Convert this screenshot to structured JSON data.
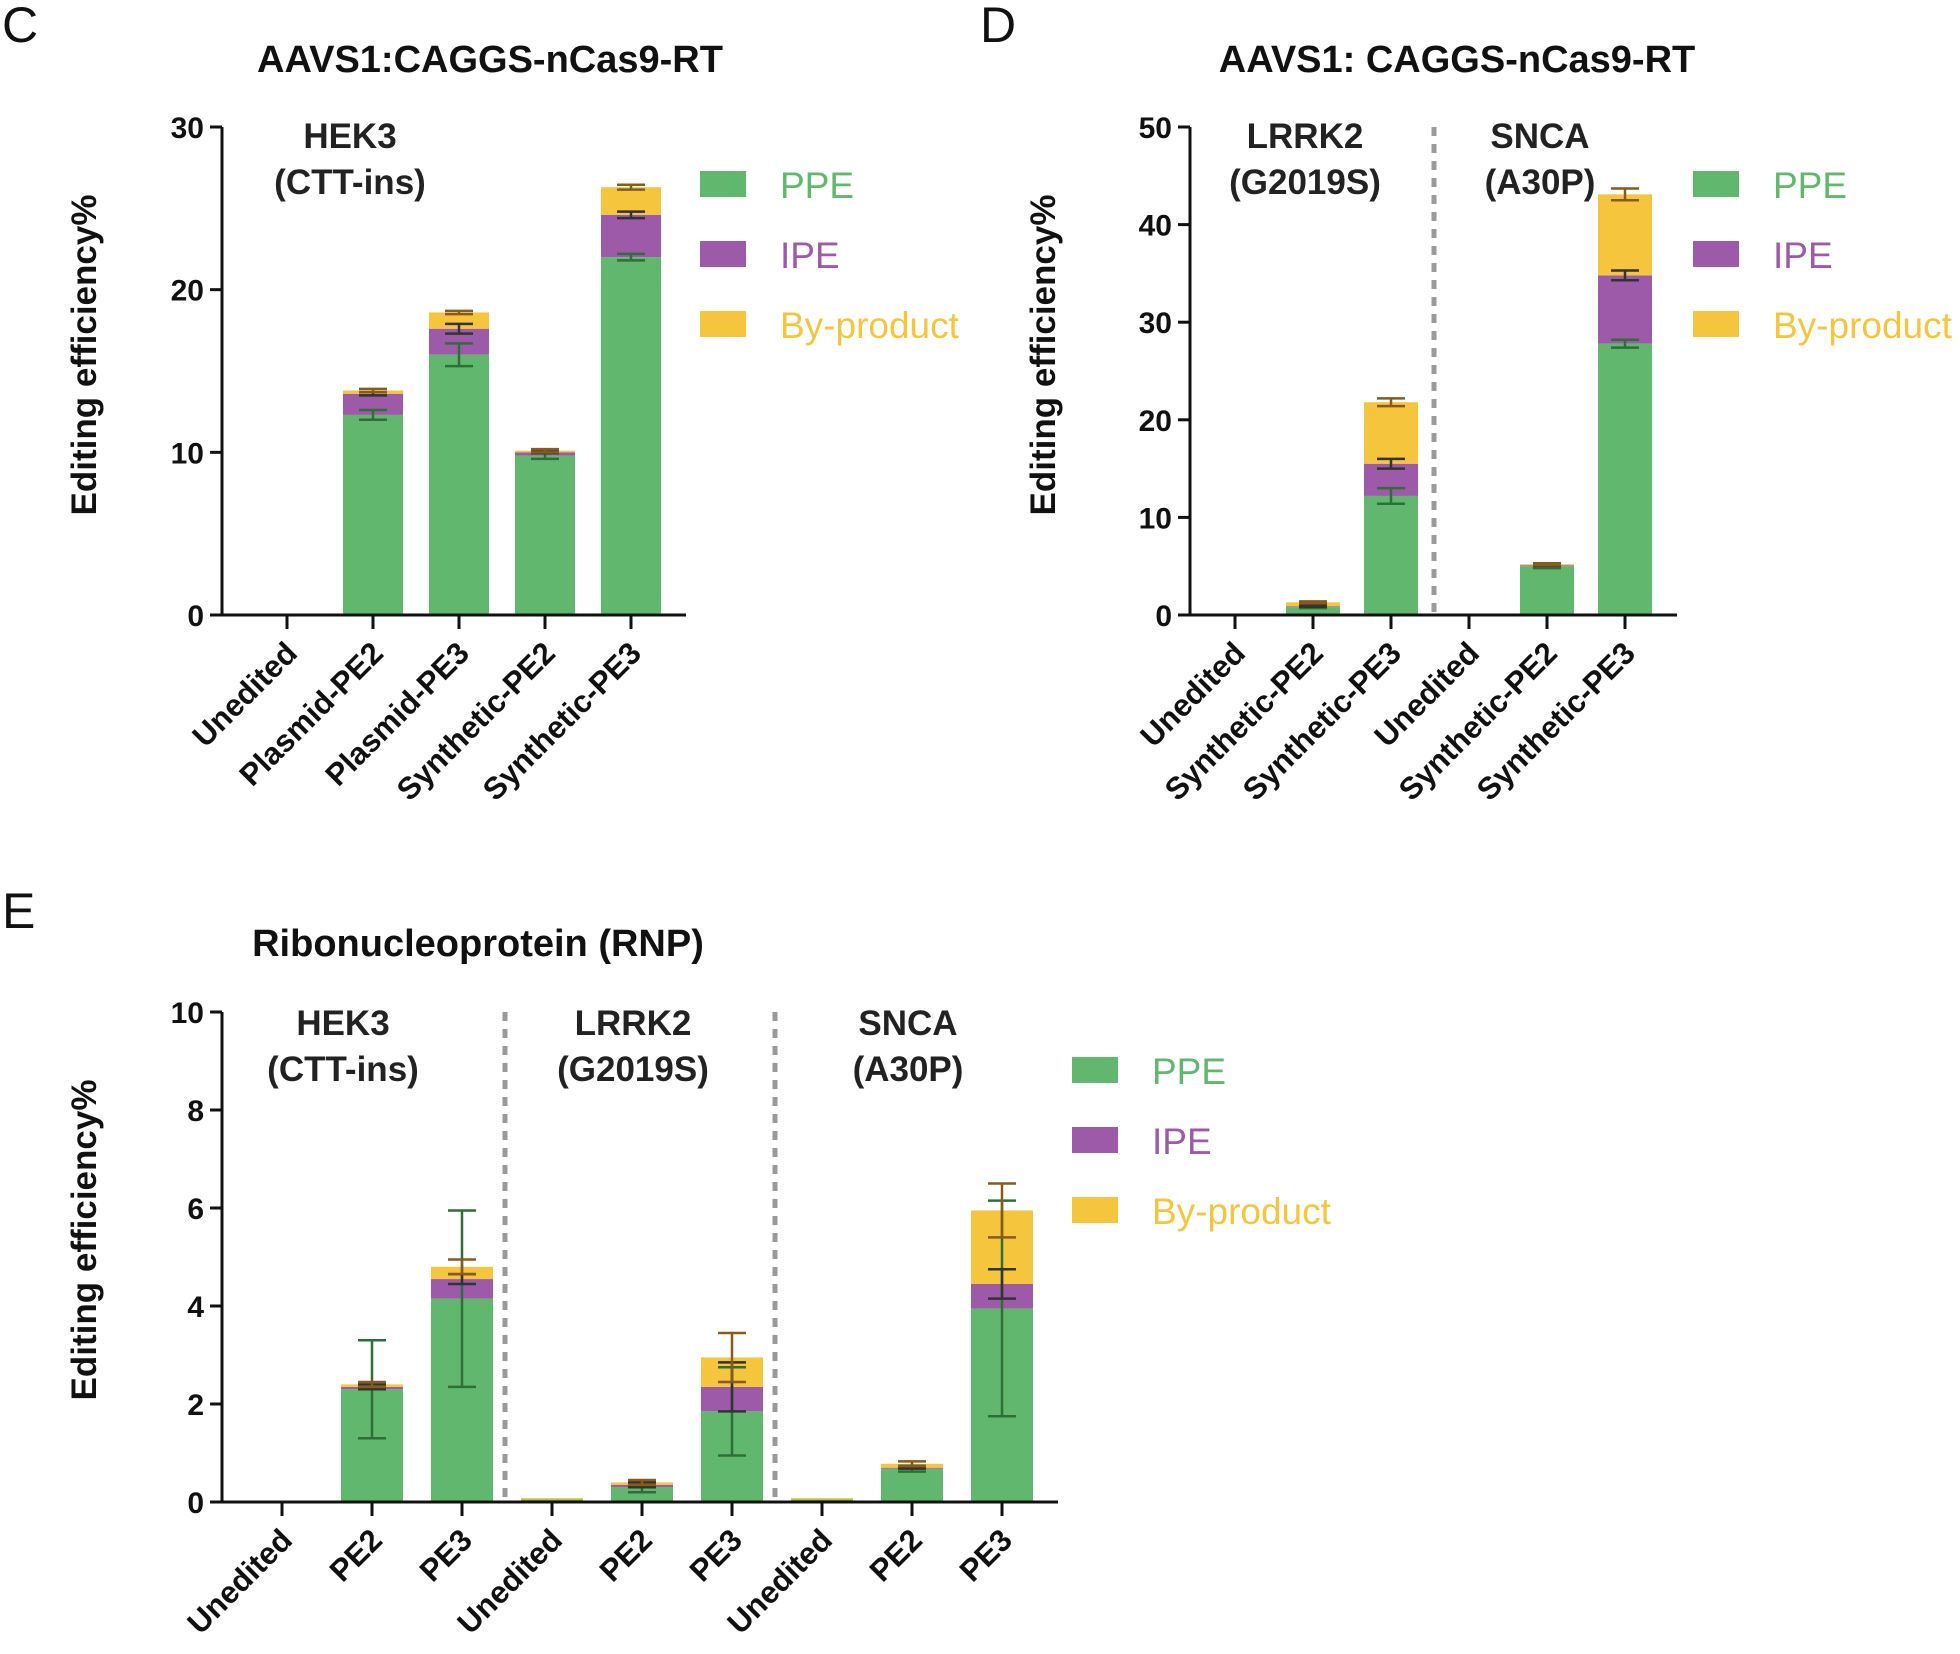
{
  "colors": {
    "ppe": "#62b76f",
    "ipe": "#9d5aa8",
    "byproduct": "#f4c53d",
    "axis": "#111111",
    "divider": "#9a9a9a",
    "error_bar": "#2f2f2f"
  },
  "legend": {
    "labels": [
      "PPE",
      "IPE",
      "By-product"
    ]
  },
  "chart_data": [
    {
      "panel": "C",
      "type": "bar",
      "stacked": true,
      "title": "AAVS1:CAGGS-nCas9-RT",
      "ylabel": "Editing efficiency%",
      "xlabel": "",
      "ylim": [
        0,
        30
      ],
      "yticks": [
        "0",
        "10",
        "20",
        "30"
      ],
      "groups": [
        {
          "label": "HEK3\n(CTT-ins)",
          "categories": [
            0,
            1,
            2,
            3,
            4
          ]
        }
      ],
      "categories": [
        "Unedited",
        "Plasmid-PE2",
        "Plasmid-PE3",
        "Synthetic-PE2",
        "Synthetic-PE3"
      ],
      "series": [
        {
          "name": "PPE",
          "values": [
            0,
            12.3,
            16.0,
            9.8,
            22.0
          ],
          "error": [
            0,
            0.3,
            0.7,
            0.2,
            0.2
          ]
        },
        {
          "name": "IPE",
          "values": [
            0,
            1.3,
            1.6,
            0.2,
            2.6
          ],
          "error": [
            0,
            0.1,
            0.3,
            0.05,
            0.2
          ]
        },
        {
          "name": "By-product",
          "values": [
            0,
            0.2,
            1.0,
            0.1,
            1.7
          ],
          "error": [
            0,
            0.1,
            0.1,
            0.1,
            0.15
          ]
        }
      ]
    },
    {
      "panel": "D",
      "type": "bar",
      "stacked": true,
      "title": "AAVS1: CAGGS-nCas9-RT",
      "ylabel": "Editing efficiency%",
      "xlabel": "",
      "ylim": [
        0,
        50
      ],
      "yticks": [
        "0",
        "10",
        "20",
        "30",
        "40",
        "50"
      ],
      "groups": [
        {
          "label": "LRRK2\n(G2019S)",
          "categories": [
            0,
            1,
            2
          ]
        },
        {
          "label": "SNCA\n(A30P)",
          "categories": [
            3,
            4,
            5
          ]
        }
      ],
      "categories": [
        "Unedited",
        "Synthetic-PE2",
        "Synthetic-PE3",
        "Unedited",
        "Synthetic-PE2",
        "Synthetic-PE3"
      ],
      "series": [
        {
          "name": "PPE",
          "values": [
            0,
            0.8,
            12.2,
            0,
            5.0,
            27.8
          ],
          "error": [
            0,
            0.1,
            0.8,
            0,
            0.2,
            0.4
          ]
        },
        {
          "name": "IPE",
          "values": [
            0,
            0.1,
            3.3,
            0,
            0.1,
            7.0
          ],
          "error": [
            0,
            0.05,
            0.5,
            0,
            0.05,
            0.5
          ]
        },
        {
          "name": "By-product",
          "values": [
            0,
            0.4,
            6.3,
            0,
            0.1,
            8.3
          ],
          "error": [
            0,
            0.1,
            0.4,
            0,
            0.1,
            0.6
          ]
        }
      ]
    },
    {
      "panel": "E",
      "type": "bar",
      "stacked": true,
      "title": "Ribonucleoprotein (RNP)",
      "ylabel": "Editing efficiency%",
      "xlabel": "",
      "ylim": [
        0,
        10
      ],
      "yticks": [
        "0",
        "2",
        "4",
        "6",
        "8",
        "10"
      ],
      "groups": [
        {
          "label": "HEK3\n(CTT-ins)",
          "categories": [
            0,
            1,
            2
          ]
        },
        {
          "label": "LRRK2\n(G2019S)",
          "categories": [
            3,
            4,
            5
          ]
        },
        {
          "label": "SNCA\n(A30P)",
          "categories": [
            6,
            7,
            8
          ]
        }
      ],
      "categories": [
        "Unedited",
        "PE2",
        "PE3",
        "Unedited",
        "PE2",
        "PE3",
        "Unedited",
        "PE2",
        "PE3"
      ],
      "series": [
        {
          "name": "PPE",
          "values": [
            0,
            2.3,
            4.15,
            0.05,
            0.3,
            1.85,
            0.05,
            0.68,
            3.95
          ],
          "error": [
            0,
            1.0,
            1.8,
            0,
            0.1,
            0.9,
            0,
            0.06,
            2.2
          ]
        },
        {
          "name": "IPE",
          "values": [
            0,
            0.05,
            0.4,
            0,
            0.05,
            0.5,
            0,
            0.02,
            0.5
          ],
          "error": [
            0,
            0.05,
            0.1,
            0,
            0.05,
            0.5,
            0,
            0.02,
            0.3
          ]
        },
        {
          "name": "By-product",
          "values": [
            0.03,
            0.05,
            0.25,
            0.03,
            0.05,
            0.6,
            0.03,
            0.08,
            1.5
          ],
          "error": [
            0,
            0.05,
            0.15,
            0,
            0.05,
            0.5,
            0,
            0.05,
            0.55
          ]
        }
      ]
    }
  ]
}
